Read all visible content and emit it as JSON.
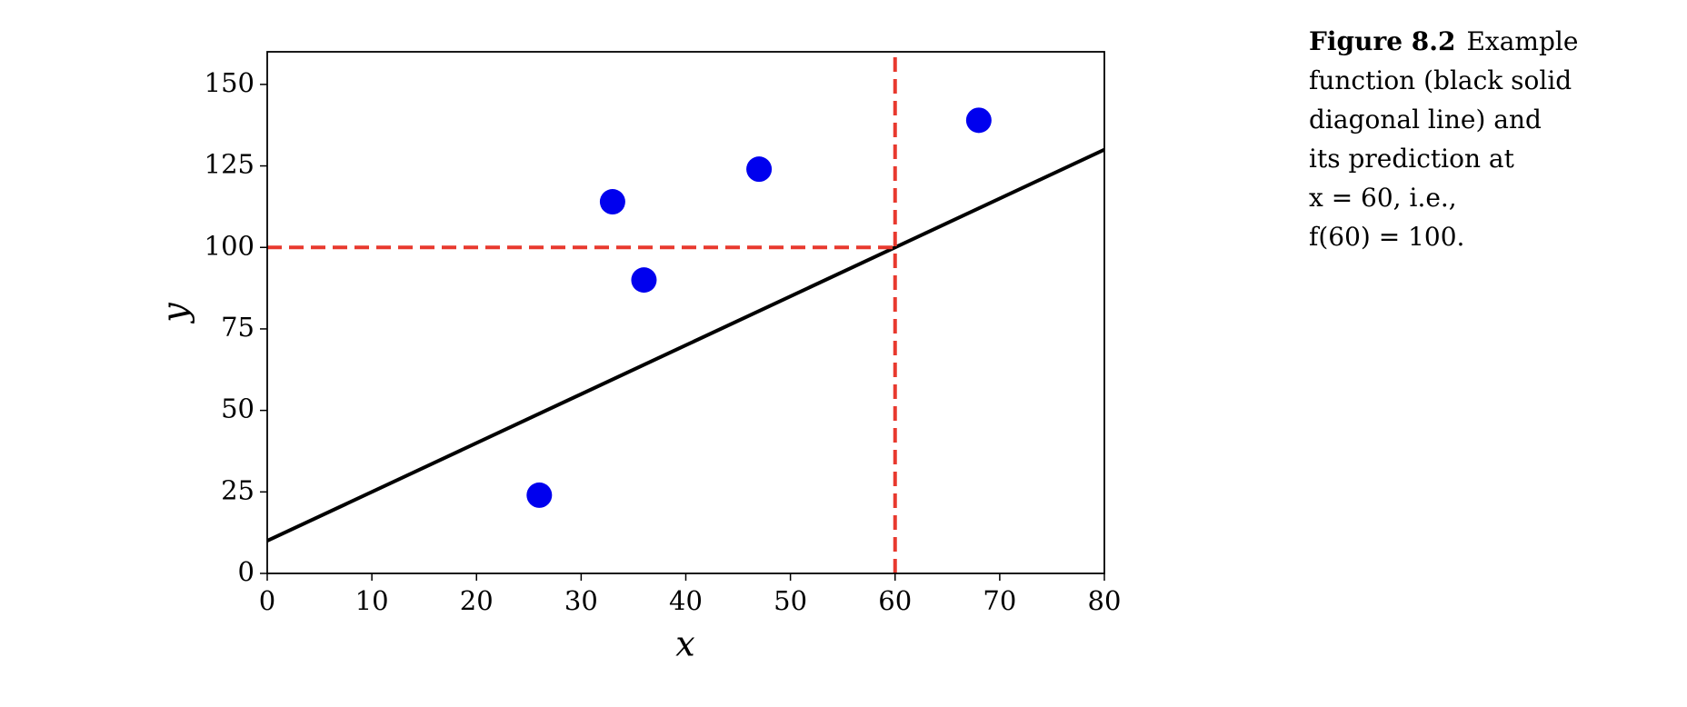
{
  "chart_data": {
    "type": "scatter",
    "x_label": "x",
    "y_label": "y",
    "xlim": [
      0,
      80
    ],
    "xticks": [
      0,
      10,
      20,
      30,
      40,
      50,
      60,
      70,
      80
    ],
    "ylim": [
      0,
      160
    ],
    "yticks": [
      0,
      25,
      50,
      75,
      100,
      125,
      150
    ],
    "series": [
      {
        "type": "scatter",
        "color": "#0000ee",
        "x": [
          26,
          33,
          36,
          47,
          68
        ],
        "values": [
          24,
          114,
          90,
          124,
          139
        ]
      },
      {
        "type": "line",
        "style": "solid",
        "color": "#000000",
        "x": [
          0,
          80
        ],
        "values": [
          10,
          130
        ]
      },
      {
        "type": "line",
        "style": "dashed",
        "color": "#e8392e",
        "x": [
          60,
          60
        ],
        "values": [
          0,
          160
        ]
      },
      {
        "type": "line",
        "style": "dashed",
        "color": "#e8392e",
        "x": [
          0,
          60
        ],
        "values": [
          100,
          100
        ]
      }
    ]
  },
  "caption": {
    "label": "Figure 8.2",
    "lines": [
      "Example",
      "function (black solid",
      "diagonal line) and",
      "its prediction at",
      "x = 60, i.e.,",
      "f(60) = 100."
    ]
  }
}
